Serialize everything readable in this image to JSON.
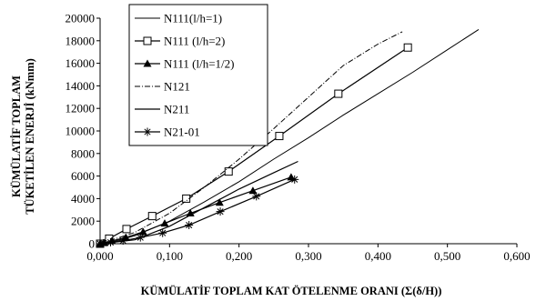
{
  "chart_data": {
    "type": "line",
    "xlabel": "KÜMÜLATİF TOPLAM KAT ÖTELENME ORANI (Σ(δ/H))",
    "ylabel_line1": "KÜMÜLATİF TOPLAM",
    "ylabel_line2": "TÜKETİLEN ENERJİ (kNmm)",
    "xlim": [
      0,
      0.6
    ],
    "ylim": [
      0,
      20000
    ],
    "x_ticks": [
      "0,000",
      "0,100",
      "0,200",
      "0,300",
      "0,400",
      "0,500",
      "0,600"
    ],
    "y_ticks": [
      "0",
      "2000",
      "4000",
      "6000",
      "8000",
      "10000",
      "12000",
      "14000",
      "16000",
      "18000",
      "20000"
    ],
    "legend_position": "top-left",
    "series": [
      {
        "name": "N111(l/h=1)",
        "style": "solid-thin",
        "marker": "none",
        "x": [
          0,
          0.02,
          0.05,
          0.1,
          0.15,
          0.2,
          0.25,
          0.3,
          0.35,
          0.4,
          0.45,
          0.5,
          0.545
        ],
        "y": [
          0,
          200,
          700,
          2000,
          3700,
          5500,
          7500,
          9400,
          11400,
          13300,
          15200,
          17200,
          19000
        ]
      },
      {
        "name": "N111 (l/h=2)",
        "style": "solid",
        "marker": "square",
        "x": [
          0,
          0.013,
          0.038,
          0.075,
          0.124,
          0.185,
          0.258,
          0.343,
          0.443
        ],
        "y": [
          0,
          450,
          1300,
          2450,
          4000,
          6400,
          9550,
          13300,
          17400
        ]
      },
      {
        "name": "N111 (l/h=1/2)",
        "style": "solid",
        "marker": "triangle",
        "x": [
          0,
          0.006,
          0.017,
          0.037,
          0.062,
          0.093,
          0.13,
          0.172,
          0.22,
          0.275
        ],
        "y": [
          0,
          80,
          250,
          550,
          1050,
          1800,
          2700,
          3650,
          4700,
          5900
        ]
      },
      {
        "name": "N121",
        "style": "dash-dot",
        "marker": "none",
        "x": [
          0,
          0.05,
          0.1,
          0.15,
          0.2,
          0.25,
          0.3,
          0.35,
          0.4,
          0.435
        ],
        "y": [
          0,
          1000,
          2700,
          5000,
          7500,
          10200,
          13000,
          15800,
          17700,
          18800
        ]
      },
      {
        "name": "N211",
        "style": "solid",
        "marker": "none",
        "x": [
          0,
          0.05,
          0.1,
          0.15,
          0.2,
          0.25,
          0.285
        ],
        "y": [
          0,
          350,
          1550,
          3200,
          4850,
          6300,
          7300
        ]
      },
      {
        "name": "N21-01",
        "style": "solid",
        "marker": "star",
        "x": [
          0,
          0.005,
          0.015,
          0.033,
          0.058,
          0.09,
          0.128,
          0.173,
          0.225,
          0.28
        ],
        "y": [
          0,
          40,
          120,
          270,
          550,
          950,
          1650,
          2850,
          4200,
          5700
        ]
      }
    ]
  }
}
